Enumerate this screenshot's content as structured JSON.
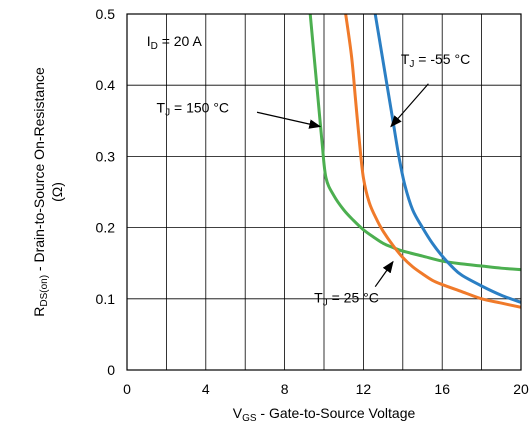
{
  "chart_data": {
    "type": "line",
    "xlabel": {
      "main": "V",
      "sub": "GS",
      "rest": " - Gate-to-Source Voltage"
    },
    "ylabel": {
      "main": "R",
      "sub": "DS(on)",
      "rest": " - Drain-to-Source On-Resistance",
      "line2": "(Ω)"
    },
    "xlim": [
      0,
      20
    ],
    "ylim": [
      0,
      0.5
    ],
    "xticks": [
      0,
      4,
      8,
      12,
      16,
      20
    ],
    "xtick_labels": [
      "0",
      "4",
      "8",
      "12",
      "16",
      "20"
    ],
    "yticks": [
      0,
      0.1,
      0.2,
      0.3,
      0.4,
      0.5
    ],
    "ytick_labels": [
      "0",
      "0.1",
      "0.2",
      "0.3",
      "0.4",
      "0.5"
    ],
    "x_gridlines": [
      2,
      4,
      6,
      8,
      10,
      12,
      14,
      16,
      18,
      20
    ],
    "y_gridlines": [
      0.1,
      0.2,
      0.3,
      0.4,
      0.5
    ],
    "grid": true,
    "condition": {
      "main": "I",
      "sub": "D",
      "rest": " = 20 A"
    },
    "series": [
      {
        "color": "#4caf50",
        "values": [
          [
            9.3,
            0.5
          ],
          [
            9.5,
            0.44
          ],
          [
            9.7,
            0.38
          ],
          [
            9.9,
            0.32
          ],
          [
            10.1,
            0.27
          ],
          [
            10.5,
            0.245
          ],
          [
            11.0,
            0.225
          ],
          [
            11.5,
            0.21
          ],
          [
            12.0,
            0.197
          ],
          [
            12.5,
            0.187
          ],
          [
            13.0,
            0.178
          ],
          [
            13.5,
            0.172
          ],
          [
            14.0,
            0.167
          ],
          [
            15.0,
            0.16
          ],
          [
            16.0,
            0.153
          ],
          [
            17.0,
            0.149
          ],
          [
            18.0,
            0.146
          ],
          [
            19.0,
            0.143
          ],
          [
            20.0,
            0.141
          ]
        ]
      },
      {
        "color": "#f07a2a",
        "values": [
          [
            11.1,
            0.5
          ],
          [
            11.4,
            0.44
          ],
          [
            11.6,
            0.38
          ],
          [
            11.8,
            0.32
          ],
          [
            12.0,
            0.27
          ],
          [
            12.3,
            0.235
          ],
          [
            12.7,
            0.21
          ],
          [
            13.0,
            0.195
          ],
          [
            13.5,
            0.175
          ],
          [
            14.0,
            0.158
          ],
          [
            14.5,
            0.145
          ],
          [
            15.0,
            0.135
          ],
          [
            15.5,
            0.126
          ],
          [
            16.0,
            0.12
          ],
          [
            17.0,
            0.11
          ],
          [
            18.0,
            0.1
          ],
          [
            19.0,
            0.094
          ],
          [
            20.0,
            0.088
          ]
        ]
      },
      {
        "color": "#2b7fc4",
        "values": [
          [
            12.6,
            0.5
          ],
          [
            12.9,
            0.45
          ],
          [
            13.2,
            0.4
          ],
          [
            13.5,
            0.35
          ],
          [
            13.8,
            0.3
          ],
          [
            14.1,
            0.26
          ],
          [
            14.5,
            0.225
          ],
          [
            15.0,
            0.2
          ],
          [
            15.5,
            0.178
          ],
          [
            16.0,
            0.16
          ],
          [
            16.5,
            0.145
          ],
          [
            17.0,
            0.133
          ],
          [
            18.0,
            0.118
          ],
          [
            19.0,
            0.105
          ],
          [
            20.0,
            0.095
          ]
        ]
      }
    ],
    "annotations": [
      {
        "main": "T",
        "sub": "J",
        "rest": " = 150 °C",
        "arrow_from": [
          6.6,
          0.362
        ],
        "arrow_to": [
          9.8,
          0.342
        ],
        "text_at": [
          1.5,
          0.362
        ]
      },
      {
        "main": "T",
        "sub": "J",
        "rest": " = -55 °C",
        "arrow_from": [
          15.3,
          0.402
        ],
        "arrow_to": [
          13.4,
          0.342
        ],
        "text_at": [
          13.9,
          0.43
        ]
      },
      {
        "main": "T",
        "sub": "J",
        "rest": " = 25 °C",
        "arrow_from": [
          12.6,
          0.117
        ],
        "arrow_to": [
          13.5,
          0.152
        ],
        "text_at": [
          9.5,
          0.095
        ]
      }
    ]
  }
}
